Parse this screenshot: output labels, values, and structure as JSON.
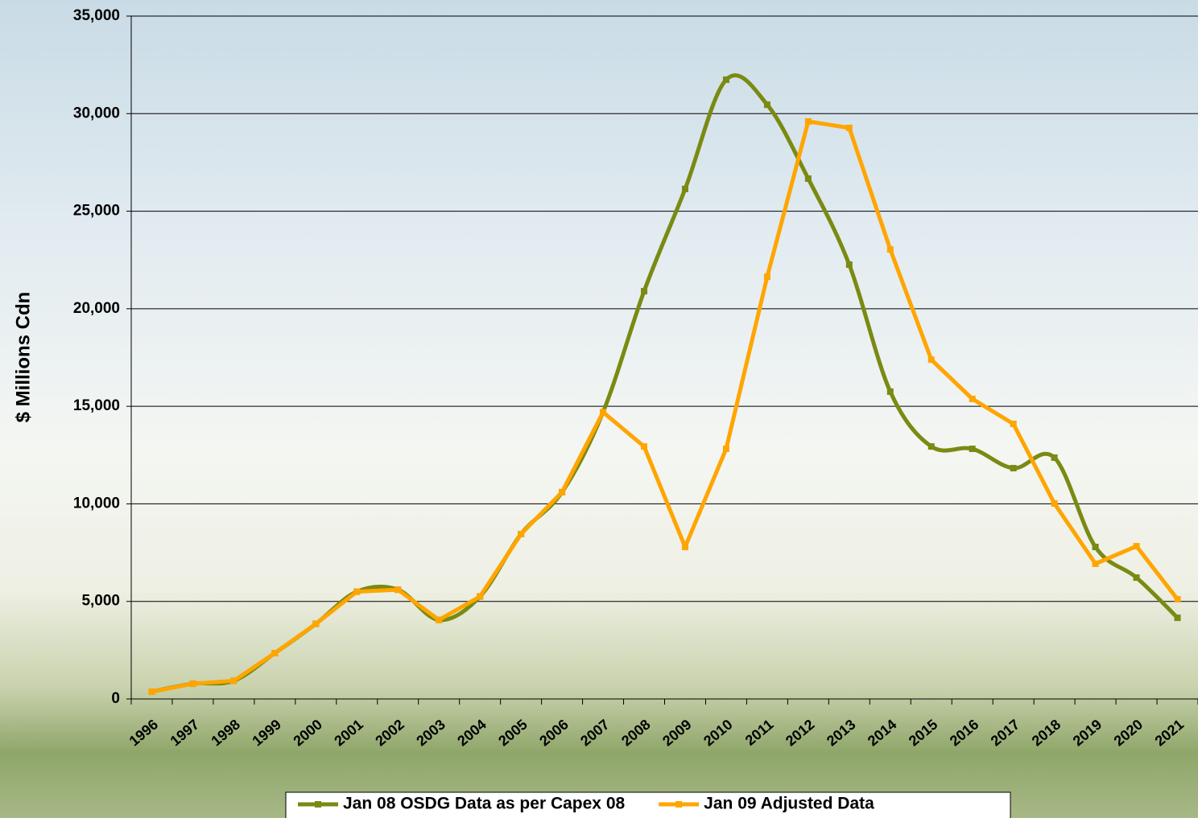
{
  "chart_data": {
    "type": "line",
    "y_label": "$ Millions Cdn",
    "categories": [
      "1996",
      "1997",
      "1998",
      "1999",
      "2000",
      "2001",
      "2002",
      "2003",
      "2004",
      "2005",
      "2006",
      "2007",
      "2008",
      "2009",
      "2010",
      "2011",
      "2012",
      "2013",
      "2014",
      "2015",
      "2016",
      "2017",
      "2018",
      "2019",
      "2020",
      "2021"
    ],
    "series": [
      {
        "name": "Jan 08 OSDG Data as per Capex 08",
        "color": "#7a8a12",
        "smooth": true,
        "values": [
          370,
          780,
          930,
          2350,
          3850,
          5500,
          5600,
          4050,
          5250,
          8450,
          10600,
          14700,
          20900,
          26140,
          31740,
          30460,
          26670,
          22260,
          15750,
          12940,
          12820,
          11830,
          12370,
          7790,
          6220,
          4160
        ]
      },
      {
        "name": "Jan 09 Adjusted Data",
        "color": "#ffa500",
        "smooth": false,
        "values": [
          370,
          780,
          930,
          2350,
          3850,
          5500,
          5600,
          4050,
          5250,
          8450,
          10600,
          14700,
          12940,
          7790,
          12820,
          21640,
          29600,
          29270,
          23040,
          17390,
          15380,
          14100,
          10020,
          6930,
          7830,
          5110
        ]
      }
    ],
    "ylim": [
      0,
      35000
    ],
    "yticks": [
      0,
      {
        "value": 5000,
        "label": "5,000"
      },
      {
        "value": 10000,
        "label": "10,000"
      },
      {
        "value": 15000,
        "label": "15,000"
      },
      {
        "value": 20000,
        "label": "20,000"
      },
      {
        "value": 25000,
        "label": "25,000"
      },
      {
        "value": 30000,
        "label": "30,000"
      },
      {
        "value": 35000,
        "label": "35,000"
      }
    ],
    "grid": true,
    "legend": "bottom"
  }
}
